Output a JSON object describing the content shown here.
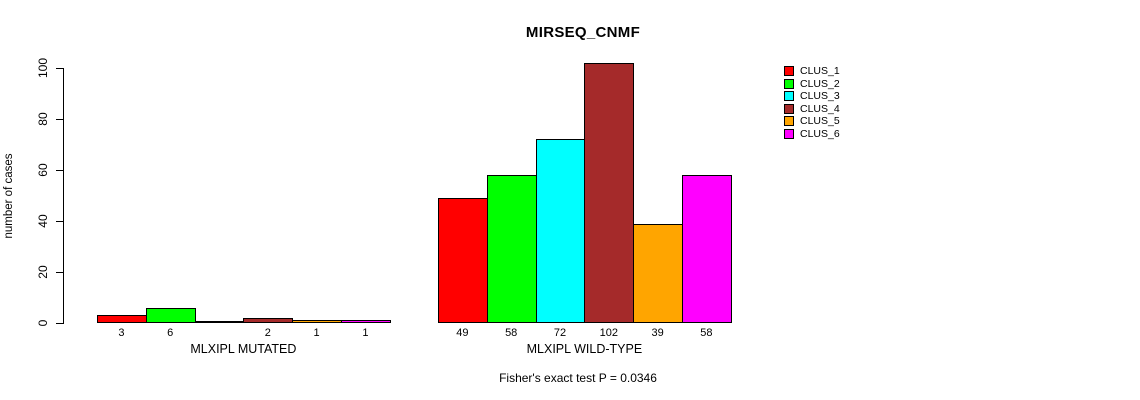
{
  "title": "MIRSEQ_CNMF",
  "footnote": "Fisher's exact test P = 0.0346",
  "y_axis": {
    "label": "number of cases",
    "tick_labels": [
      "0",
      "20",
      "40",
      "60",
      "80",
      "100"
    ]
  },
  "legend": {
    "items": [
      {
        "label": "CLUS_1",
        "color": "#FF0000"
      },
      {
        "label": "CLUS_2",
        "color": "#00FF00"
      },
      {
        "label": "CLUS_3",
        "color": "#00FFFF"
      },
      {
        "label": "CLUS_4",
        "color": "#A52A2A"
      },
      {
        "label": "CLUS_5",
        "color": "#FFA500"
      },
      {
        "label": "CLUS_6",
        "color": "#FF00FF"
      }
    ]
  },
  "chart_data": {
    "type": "bar",
    "title": "MIRSEQ_CNMF",
    "xlabel": "",
    "ylabel": "number of cases",
    "ylim": [
      0,
      100
    ],
    "yticks": [
      0,
      20,
      40,
      60,
      80,
      100
    ],
    "grid": false,
    "legend_position": "right",
    "series_names": [
      "CLUS_1",
      "CLUS_2",
      "CLUS_3",
      "CLUS_4",
      "CLUS_5",
      "CLUS_6"
    ],
    "series_colors": [
      "#FF0000",
      "#00FF00",
      "#00FFFF",
      "#A52A2A",
      "#FFA500",
      "#FF00FF"
    ],
    "categories": [
      "MLXIPL MUTATED",
      "MLXIPL WILD-TYPE"
    ],
    "groups": [
      {
        "label": "MLXIPL MUTATED",
        "values": [
          3,
          6,
          0,
          2,
          1,
          1
        ],
        "bar_labels": [
          "3",
          "6",
          "",
          "2",
          "1",
          "1"
        ]
      },
      {
        "label": "MLXIPL WILD-TYPE",
        "values": [
          49,
          58,
          72,
          102,
          39,
          58
        ],
        "bar_labels": [
          "49",
          "58",
          "72",
          "102",
          "39",
          "58"
        ]
      }
    ],
    "annotation": "Fisher's exact test P = 0.0346"
  }
}
